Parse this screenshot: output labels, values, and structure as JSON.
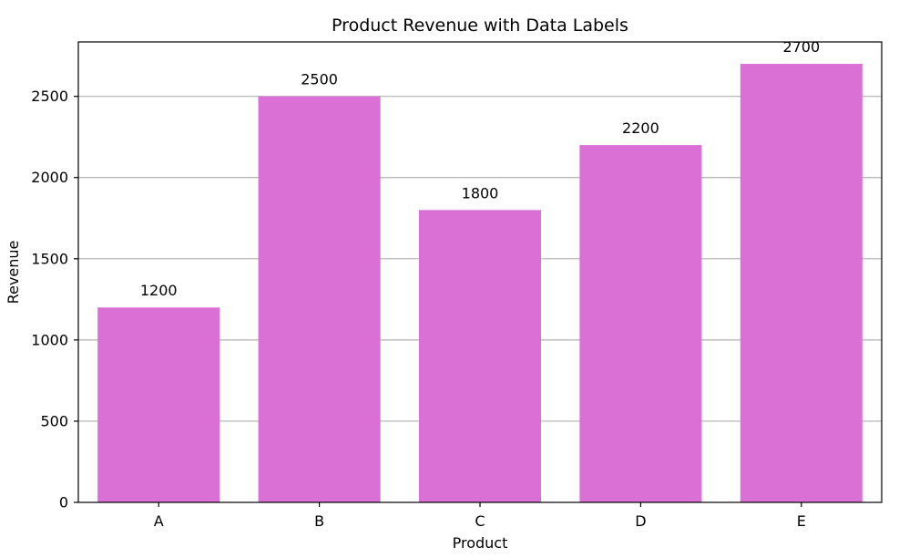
{
  "chart_data": {
    "type": "bar",
    "title": "Product Revenue with Data Labels",
    "xlabel": "Product",
    "ylabel": "Revenue",
    "categories": [
      "A",
      "B",
      "C",
      "D",
      "E"
    ],
    "values": [
      1200,
      2500,
      1800,
      2200,
      2700
    ],
    "data_labels": [
      "1200",
      "2500",
      "1800",
      "2200",
      "2700"
    ],
    "ylim": [
      0,
      2835
    ],
    "yticks": [
      0,
      500,
      1000,
      1500,
      2000,
      2500
    ],
    "ytick_labels": [
      "0",
      "500",
      "1000",
      "1500",
      "2000",
      "2500"
    ],
    "grid": "y-major",
    "legend": "none",
    "colors": {
      "bar": "#DA70D6",
      "grid": "#b0b0b0",
      "axes": "#000000"
    }
  }
}
